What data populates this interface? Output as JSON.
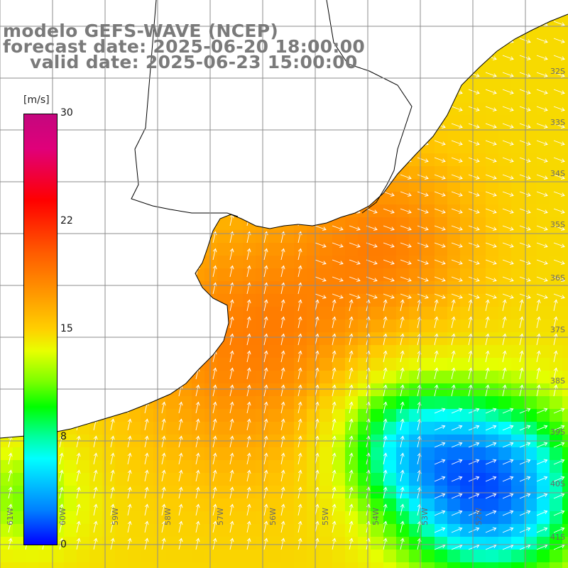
{
  "title": {
    "line1": "modelo GEFS-WAVE (NCEP)",
    "line2": "forecast date: 2025-06-20 18:00:00",
    "line3": "valid date: 2025-06-23 15:00:00"
  },
  "colorbar": {
    "unit": "[m/s]",
    "ticks": [
      "30",
      "22",
      "15",
      "8",
      "0"
    ],
    "colors": [
      "#c4077e",
      "#ff0000",
      "#ff9a00",
      "#ffd000",
      "#00ff00",
      "#00ffff",
      "#0000ff"
    ]
  },
  "grid": {
    "lat_labels": [
      "32S",
      "33S",
      "34S",
      "35S",
      "36S",
      "37S",
      "38S",
      "39S",
      "40S",
      "41S"
    ],
    "lon_labels": [
      "61W",
      "60W",
      "59W",
      "58W",
      "57W",
      "56W",
      "55W",
      "54W",
      "53W",
      "52W"
    ]
  },
  "map": {
    "field": "wind speed",
    "land_color": "#ffffff",
    "grid_color": "#8c8c8c",
    "arrow_color": "#ffffff"
  }
}
